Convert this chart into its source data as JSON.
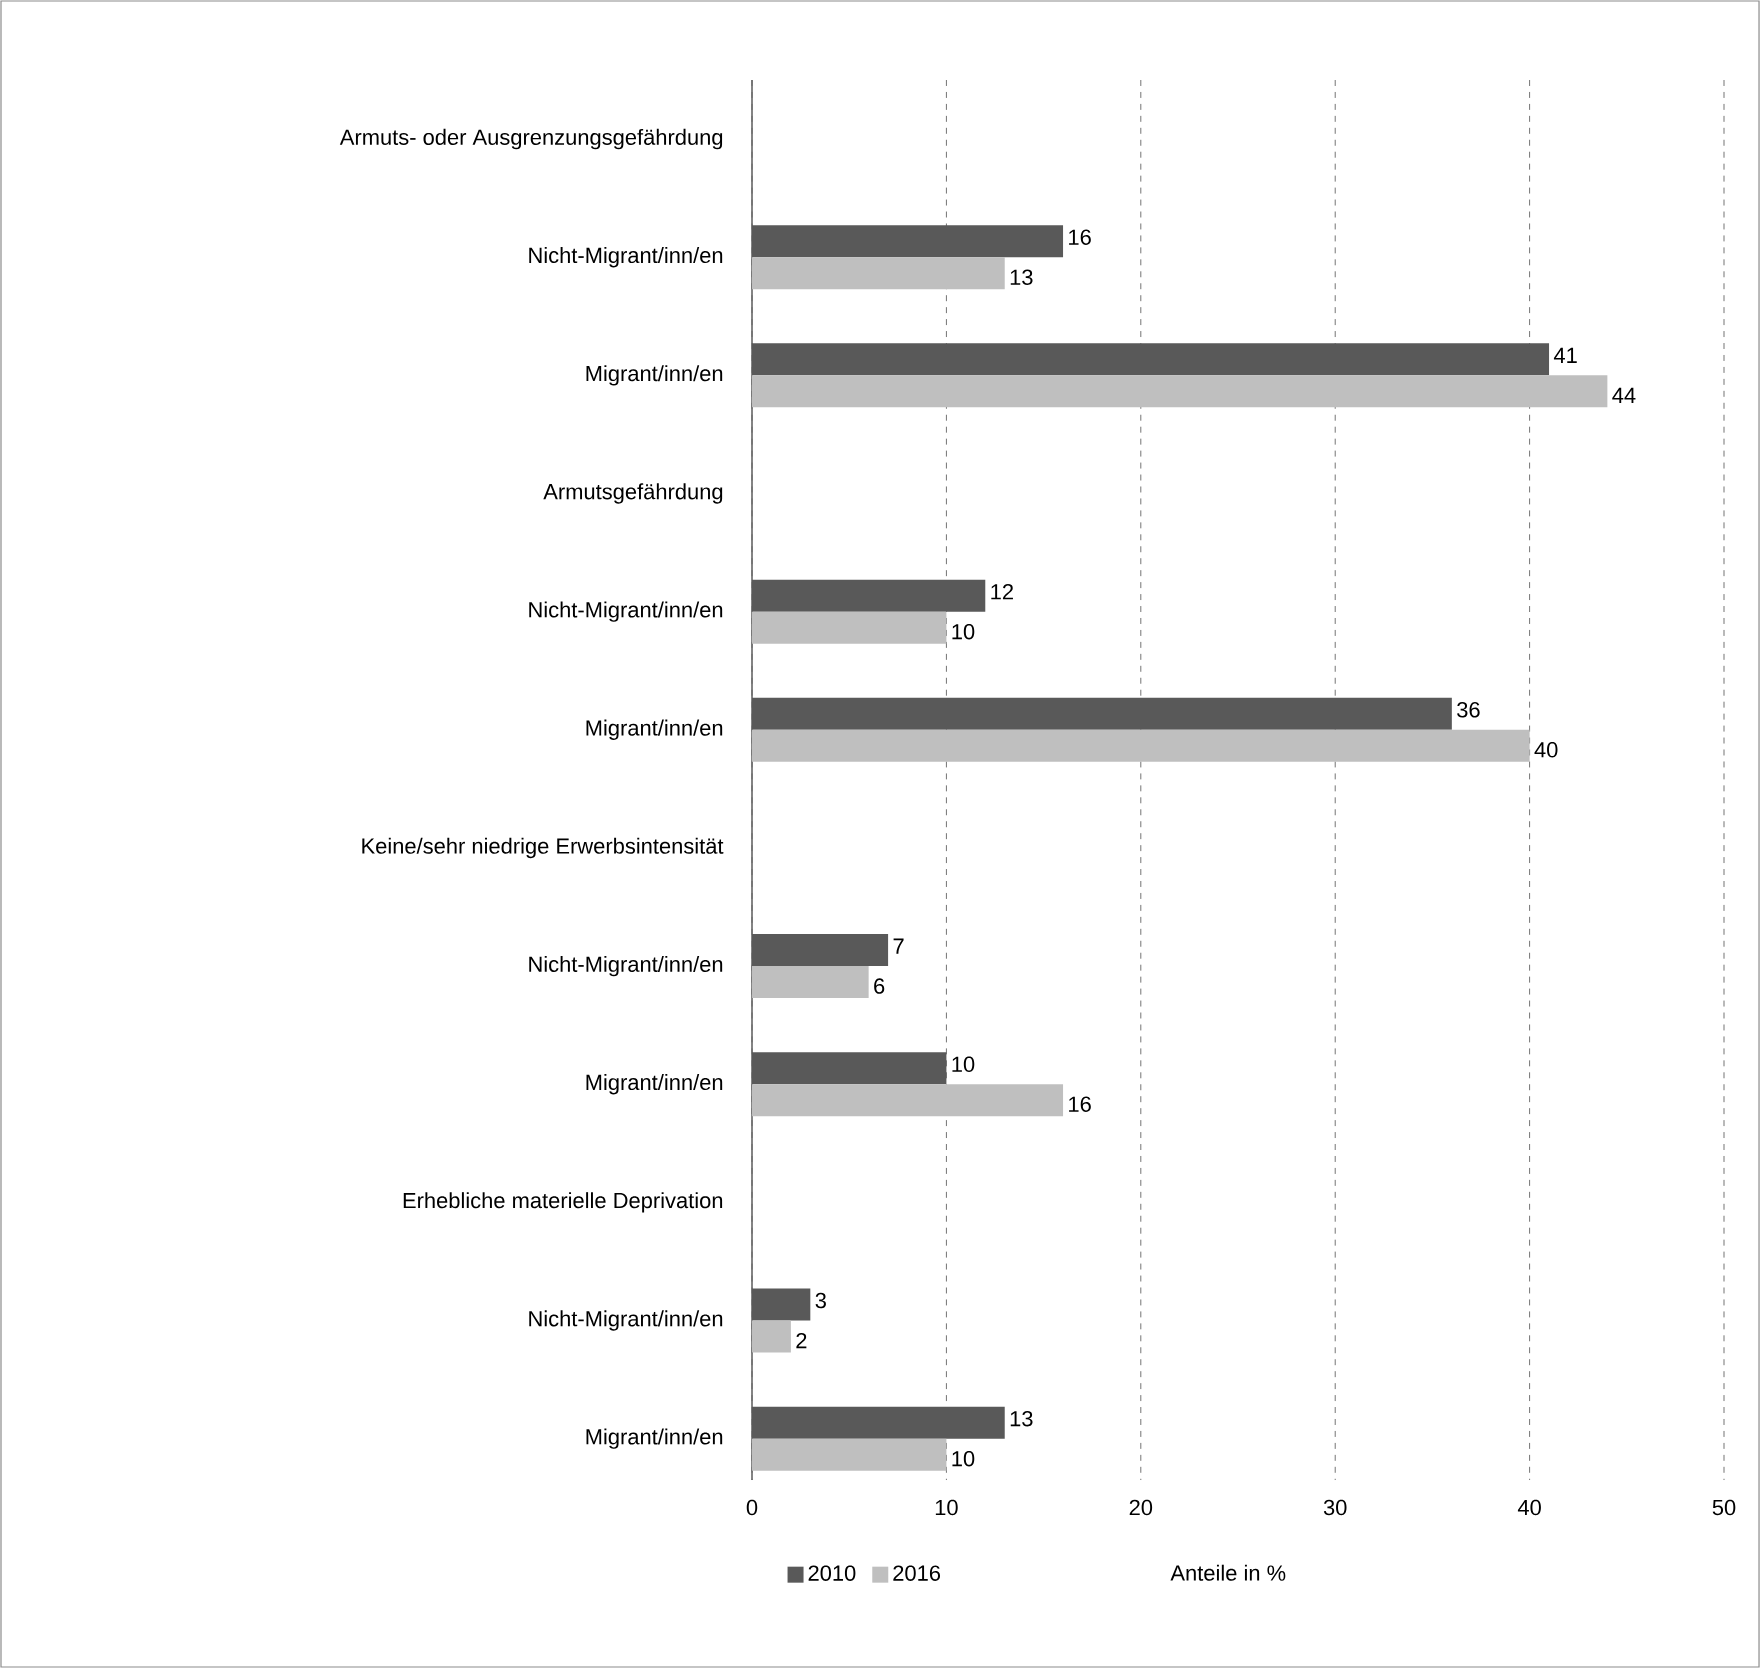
{
  "chart_data": {
    "type": "bar",
    "orientation": "horizontal",
    "categories": [
      "Armuts- oder Ausgrenzungsgefährdung",
      "Nicht-Migrant/inn/en",
      "Migrant/inn/en",
      "Armutsgefährdung",
      "Nicht-Migrant/inn/en",
      "Migrant/inn/en",
      "Keine/sehr niedrige Erwerbsintensität",
      "Nicht-Migrant/inn/en",
      "Migrant/inn/en",
      "Erhebliche materielle Deprivation",
      "Nicht-Migrant/inn/en",
      "Migrant/inn/en"
    ],
    "series": [
      {
        "name": "2010",
        "color": "#595959",
        "values": [
          null,
          16,
          41,
          null,
          12,
          36,
          null,
          7,
          10,
          null,
          3,
          13
        ]
      },
      {
        "name": "2016",
        "color": "#bfbfbf",
        "values": [
          null,
          13,
          44,
          null,
          10,
          40,
          null,
          6,
          16,
          null,
          2,
          10
        ]
      }
    ],
    "xlim": [
      0,
      50
    ],
    "xticks": [
      0,
      10,
      20,
      30,
      40,
      50
    ],
    "xlabel": "Anteile in %",
    "grid": "x",
    "legend": "bottom",
    "data_labels": true
  }
}
